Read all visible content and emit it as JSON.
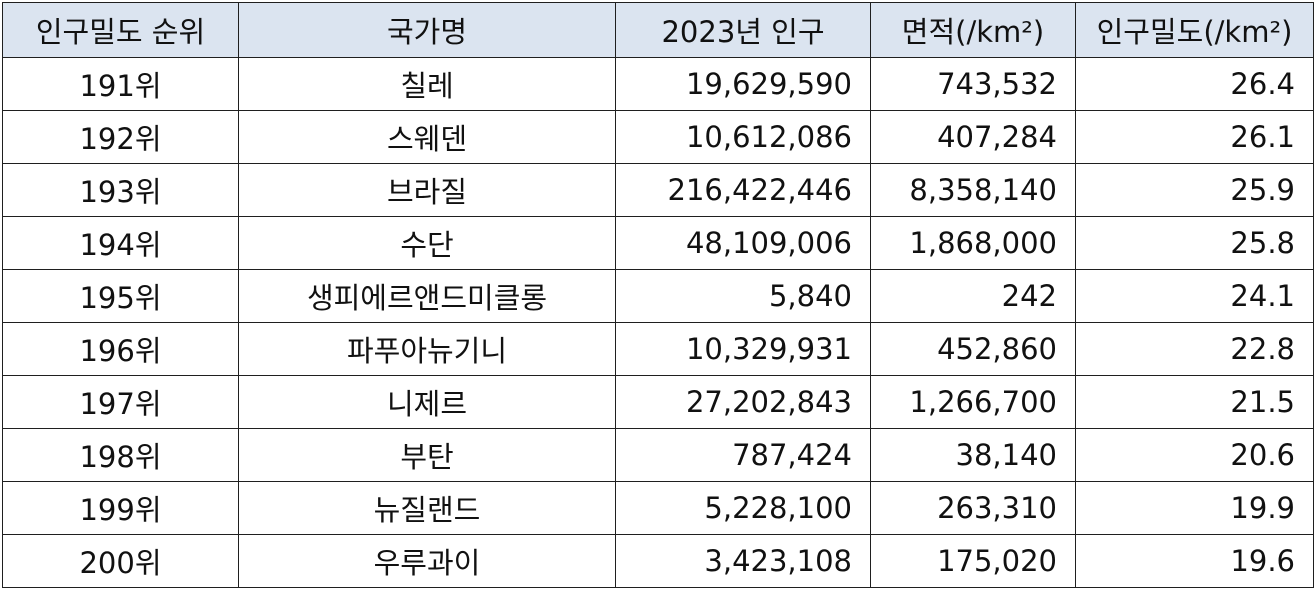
{
  "table": {
    "headers": [
      "인구밀도 순위",
      "국가명",
      "2023년 인구",
      "면적(/km²)",
      "인구밀도(/km²)"
    ],
    "rows": [
      [
        "191위",
        "칠레",
        "19,629,590",
        "743,532",
        "26.4"
      ],
      [
        "192위",
        "스웨덴",
        "10,612,086",
        "407,284",
        "26.1"
      ],
      [
        "193위",
        "브라질",
        "216,422,446",
        "8,358,140",
        "25.9"
      ],
      [
        "194위",
        "수단",
        "48,109,006",
        "1,868,000",
        "25.8"
      ],
      [
        "195위",
        "생피에르앤드미클롱",
        "5,840",
        "242",
        "24.1"
      ],
      [
        "196위",
        "파푸아뉴기니",
        "10,329,931",
        "452,860",
        "22.8"
      ],
      [
        "197위",
        "니제르",
        "27,202,843",
        "1,266,700",
        "21.5"
      ],
      [
        "198위",
        "부탄",
        "787,424",
        "38,140",
        "20.6"
      ],
      [
        "199위",
        "뉴질랜드",
        "5,228,100",
        "263,310",
        "19.9"
      ],
      [
        "200위",
        "우루과이",
        "3,423,108",
        "175,020",
        "19.6"
      ]
    ]
  },
  "colors": {
    "header_background": "#dbe4f0",
    "border": "#1f1f1f",
    "text": "#111111"
  }
}
